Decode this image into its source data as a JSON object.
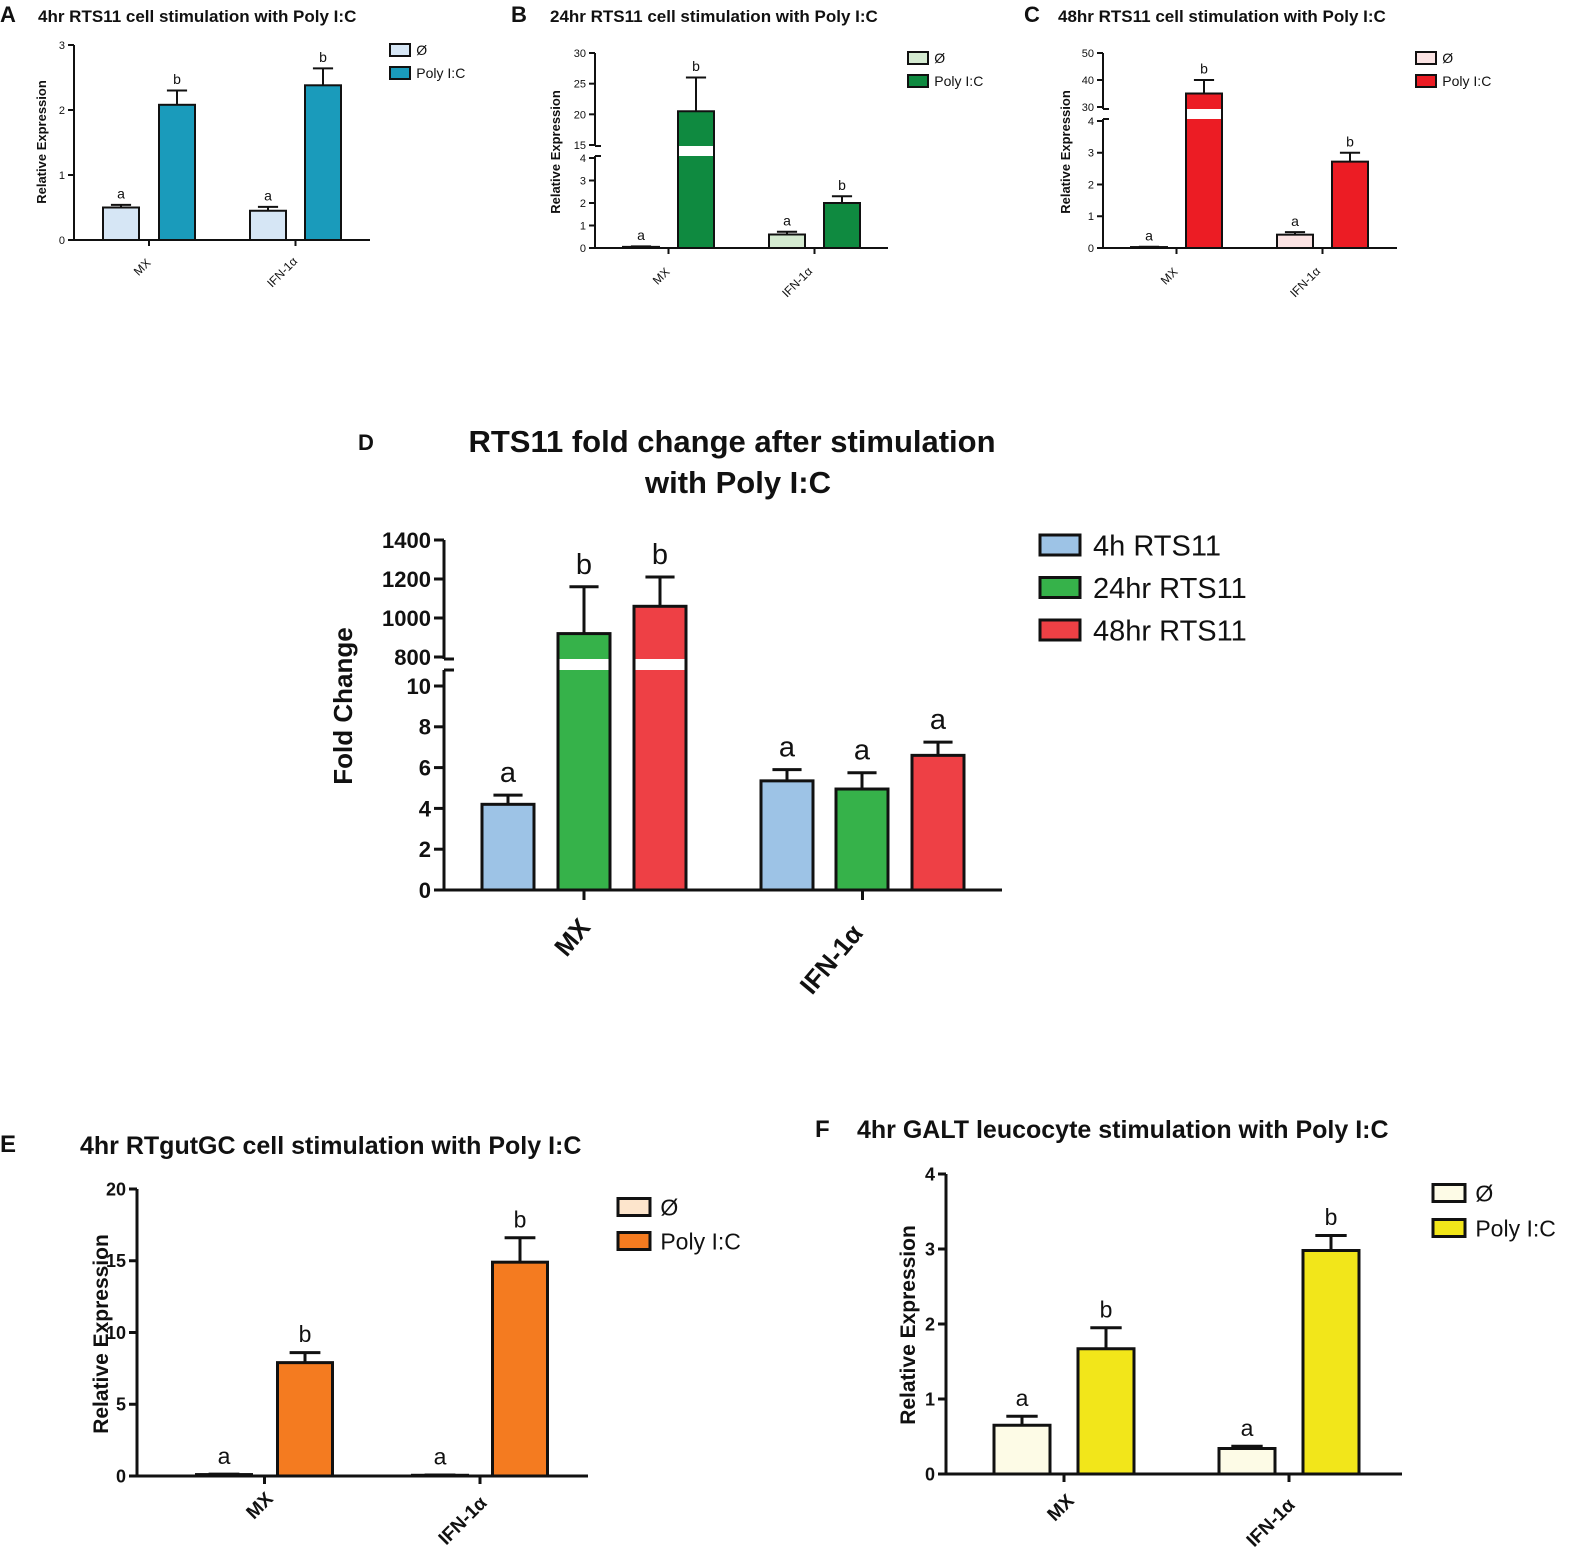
{
  "chart_data": [
    {
      "panel": "A",
      "type": "bar",
      "title": "4hr RTS11 cell stimulation with Poly I:C",
      "ylabel": "Relative Expression",
      "xlabel": "",
      "categories": [
        "MX",
        "IFN-1α"
      ],
      "series": [
        {
          "name": "Ø",
          "color": "#d6e6f5",
          "values": [
            0.5,
            0.45
          ],
          "errors": [
            0.04,
            0.06
          ],
          "letters": [
            "a",
            "a"
          ]
        },
        {
          "name": "Poly I:C",
          "color": "#1a9bbb",
          "values": [
            2.08,
            2.38
          ],
          "errors": [
            0.22,
            0.26
          ],
          "letters": [
            "b",
            "b"
          ]
        }
      ],
      "ylim": [
        0,
        3
      ],
      "ticks": [
        "0",
        "1",
        "2",
        "3"
      ]
    },
    {
      "panel": "B",
      "type": "bar",
      "title": "24hr RTS11 cell stimulation with Poly I:C",
      "ylabel": "Relative Expression",
      "xlabel": "",
      "categories": [
        "MX",
        "IFN-1α"
      ],
      "series": [
        {
          "name": "Ø",
          "color": "#d4ead0",
          "values": [
            0.05,
            0.6
          ],
          "errors": [
            0.02,
            0.12
          ],
          "letters": [
            "a",
            "a"
          ]
        },
        {
          "name": "Poly I:C",
          "color": "#0f8a40",
          "values": [
            20.5,
            2.0
          ],
          "errors": [
            5.5,
            0.3
          ],
          "letters": [
            "b",
            "b"
          ]
        }
      ],
      "axis_break": {
        "lower": [
          0,
          4
        ],
        "upper": [
          15,
          30
        ]
      },
      "ticks": [
        "0",
        "1",
        "2",
        "3",
        "4",
        "15",
        "20",
        "25",
        "30"
      ]
    },
    {
      "panel": "C",
      "type": "bar",
      "title": "48hr RTS11 cell stimulation with Poly I:C",
      "ylabel": "Relative Expression",
      "xlabel": "",
      "categories": [
        "MX",
        "IFN-1α"
      ],
      "series": [
        {
          "name": "Ø",
          "color": "#fbe3e3",
          "values": [
            0.03,
            0.42
          ],
          "errors": [
            0.01,
            0.08
          ],
          "letters": [
            "a",
            "a"
          ]
        },
        {
          "name": "Poly I:C",
          "color": "#ec1c24",
          "values": [
            35,
            2.72
          ],
          "errors": [
            5,
            0.28
          ],
          "letters": [
            "b",
            "b"
          ]
        }
      ],
      "axis_break": {
        "lower": [
          0,
          4
        ],
        "upper": [
          30,
          50
        ]
      },
      "ticks": [
        "0",
        "1",
        "2",
        "3",
        "4",
        "30",
        "40",
        "50"
      ]
    },
    {
      "panel": "D",
      "type": "bar",
      "title": "RTS11 fold change after stimulation with Poly I:C",
      "title_lines": [
        "RTS11 fold change after stimulation",
        "with Poly I:C"
      ],
      "ylabel": "Fold Change",
      "xlabel": "",
      "categories": [
        "MX",
        "IFN-1α"
      ],
      "series": [
        {
          "name": "4h RTS11",
          "color": "#9dc3e6",
          "values": [
            4.2,
            5.35
          ],
          "errors": [
            0.45,
            0.55
          ],
          "letters": [
            "a",
            "a"
          ]
        },
        {
          "name": "24hr RTS11",
          "color": "#36b24a",
          "values": [
            920,
            4.95
          ],
          "errors": [
            240,
            0.8
          ],
          "letters": [
            "b",
            "a"
          ]
        },
        {
          "name": "48hr RTS11",
          "color": "#ee4045",
          "values": [
            1060,
            6.6
          ],
          "errors": [
            150,
            0.65
          ],
          "letters": [
            "b",
            "a"
          ]
        }
      ],
      "axis_break": {
        "lower": [
          0,
          10
        ],
        "upper": [
          800,
          1400
        ]
      },
      "ticks": [
        "0",
        "2",
        "4",
        "6",
        "8",
        "10",
        "800",
        "1000",
        "1200",
        "1400"
      ]
    },
    {
      "panel": "E",
      "type": "bar",
      "title": "4hr RTgutGC cell stimulation with Poly I:C",
      "ylabel": "Relative Expression",
      "xlabel": "",
      "categories": [
        "MX",
        "IFN-1α"
      ],
      "series": [
        {
          "name": "Ø",
          "color": "#fde5cc",
          "values": [
            0.1,
            0.05
          ],
          "errors": [
            0.03,
            0.02
          ],
          "letters": [
            "a",
            "a"
          ]
        },
        {
          "name": "Poly I:C",
          "color": "#f47b20",
          "values": [
            7.9,
            14.9
          ],
          "errors": [
            0.7,
            1.7
          ],
          "letters": [
            "b",
            "b"
          ]
        }
      ],
      "ylim": [
        0,
        20
      ],
      "ticks": [
        "0",
        "5",
        "10",
        "15",
        "20"
      ]
    },
    {
      "panel": "F",
      "type": "bar",
      "title": "4hr GALT leucocyte stimulation with Poly I:C",
      "ylabel": "Relative Expression",
      "xlabel": "",
      "categories": [
        "MX",
        "IFN-1α"
      ],
      "series": [
        {
          "name": "Ø",
          "color": "#fdfbe6",
          "values": [
            0.65,
            0.34
          ],
          "errors": [
            0.12,
            0.03
          ],
          "letters": [
            "a",
            "a"
          ]
        },
        {
          "name": "Poly I:C",
          "color": "#f2e61a",
          "values": [
            1.67,
            2.98
          ],
          "errors": [
            0.28,
            0.2
          ],
          "letters": [
            "b",
            "b"
          ]
        }
      ],
      "ylim": [
        0,
        4
      ],
      "ticks": [
        "0",
        "1",
        "2",
        "3",
        "4"
      ]
    }
  ]
}
